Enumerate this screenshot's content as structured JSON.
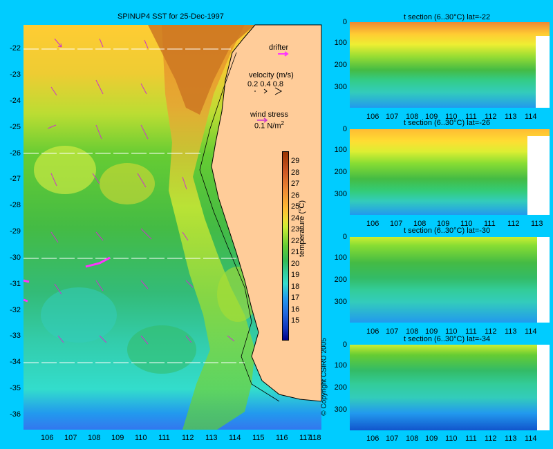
{
  "map": {
    "title": "SPINUP4 SST for 25-Dec-1997",
    "lon_ticks": [
      "106",
      "107",
      "108",
      "109",
      "110",
      "111",
      "112",
      "113",
      "114",
      "115",
      "116",
      "117",
      "118"
    ],
    "lat_ticks": [
      "-22",
      "-23",
      "-24",
      "-25",
      "-26",
      "-27",
      "-28",
      "-29",
      "-30",
      "-31",
      "-32",
      "-33",
      "-34",
      "-35",
      "-36"
    ],
    "section_lats": [
      -22,
      -26,
      -30,
      -34
    ],
    "legend": {
      "drifter": "drifter",
      "velocity_label": "velocity (m/s)",
      "velocity_scales": "0.2 0.4 0.8",
      "wind_label": "wind stress",
      "wind_value": "0.1 N/m",
      "wind_exp": "2"
    },
    "colorbar": {
      "label": "temperature (°C)",
      "ticks": [
        "29",
        "28",
        "27",
        "26",
        "25",
        "24",
        "23",
        "22",
        "21",
        "20",
        "19",
        "18",
        "17",
        "16",
        "15"
      ]
    },
    "copyright": "© Copyright CSIRO 2005",
    "colors": {
      "background": "#00ccff",
      "land": "#ffcc99",
      "drifter": "#ff33ff",
      "arrow": "#cc33cc"
    }
  },
  "sections": [
    {
      "title": "t section (6..30°C) lat=-22",
      "x_ticks": [
        "106",
        "107",
        "108",
        "109",
        "110",
        "111",
        "112",
        "113",
        "114"
      ],
      "depth_ticks": [
        "0",
        "100",
        "200",
        "300"
      ]
    },
    {
      "title": "t section (6..30°C) lat=-26",
      "x_ticks": [
        "106",
        "107",
        "108",
        "109",
        "110",
        "111",
        "112",
        "113"
      ],
      "depth_ticks": [
        "0",
        "100",
        "200",
        "300"
      ]
    },
    {
      "title": "t section (6..30°C) lat=-30",
      "x_ticks": [
        "106",
        "107",
        "108",
        "109",
        "110",
        "111",
        "112",
        "113",
        "114"
      ],
      "depth_ticks": [
        "0",
        "100",
        "200",
        "300"
      ]
    },
    {
      "title": "t section (6..30°C) lat=-34",
      "x_ticks": [
        "106",
        "107",
        "108",
        "109",
        "110",
        "111",
        "112",
        "113",
        "114"
      ],
      "depth_ticks": [
        "0",
        "100",
        "200",
        "300"
      ]
    }
  ]
}
